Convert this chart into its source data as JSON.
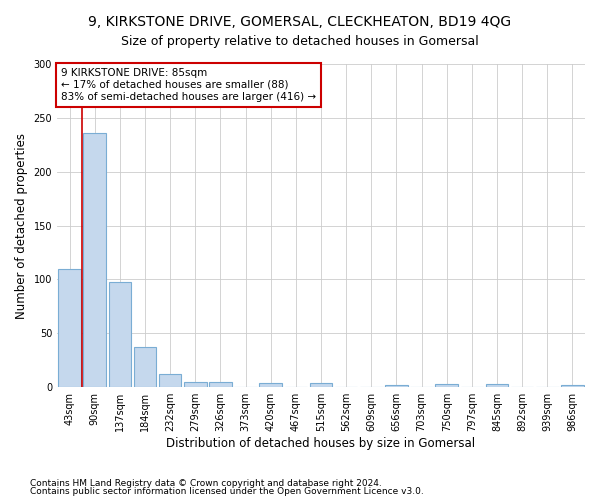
{
  "title": "9, KIRKSTONE DRIVE, GOMERSAL, CLECKHEATON, BD19 4QG",
  "subtitle": "Size of property relative to detached houses in Gomersal",
  "xlabel": "Distribution of detached houses by size in Gomersal",
  "ylabel": "Number of detached properties",
  "categories": [
    "43sqm",
    "90sqm",
    "137sqm",
    "184sqm",
    "232sqm",
    "279sqm",
    "326sqm",
    "373sqm",
    "420sqm",
    "467sqm",
    "515sqm",
    "562sqm",
    "609sqm",
    "656sqm",
    "703sqm",
    "750sqm",
    "797sqm",
    "845sqm",
    "892sqm",
    "939sqm",
    "986sqm"
  ],
  "values": [
    110,
    236,
    98,
    37,
    12,
    5,
    5,
    0,
    4,
    0,
    4,
    0,
    0,
    2,
    0,
    3,
    0,
    3,
    0,
    0,
    2
  ],
  "bar_color": "#c5d8ed",
  "bar_edge_color": "#7aadd4",
  "annotation_box_text": "9 KIRKSTONE DRIVE: 85sqm\n← 17% of detached houses are smaller (88)\n83% of semi-detached houses are larger (416) →",
  "annotation_line_color": "#cc0000",
  "annotation_box_color": "#ffffff",
  "annotation_box_edge_color": "#cc0000",
  "ylim": [
    0,
    300
  ],
  "yticks": [
    0,
    50,
    100,
    150,
    200,
    250,
    300
  ],
  "footer_line1": "Contains HM Land Registry data © Crown copyright and database right 2024.",
  "footer_line2": "Contains public sector information licensed under the Open Government Licence v3.0.",
  "bg_color": "#ffffff",
  "plot_bg_color": "#ffffff",
  "grid_color": "#cccccc",
  "title_fontsize": 10,
  "subtitle_fontsize": 9,
  "axis_label_fontsize": 8.5,
  "tick_fontsize": 7,
  "footer_fontsize": 6.5
}
